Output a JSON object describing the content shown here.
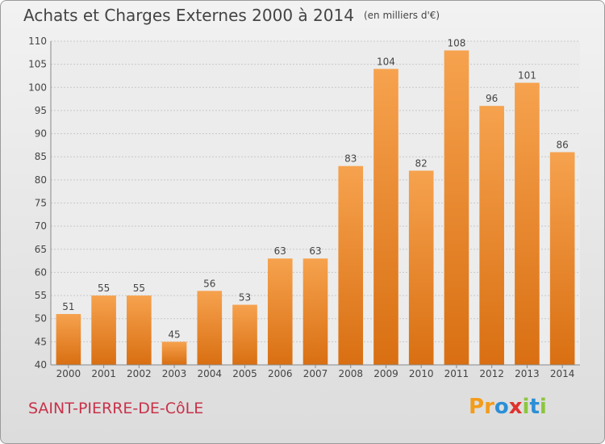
{
  "title": "Achats et Charges Externes 2000 à 2014",
  "unit_note": "(en milliers d'€)",
  "commune": "SAINT-PIERRE-DE-CôLE",
  "brand": {
    "letters": [
      "P",
      "r",
      "o",
      "x",
      "i",
      "t",
      "i"
    ],
    "colors": [
      "#f39c1a",
      "#f39c1a",
      "#2b8fd6",
      "#e0312e",
      "#8cc63f",
      "#2b8fd6",
      "#8cc63f"
    ]
  },
  "chart_data": {
    "type": "bar",
    "categories": [
      "2000",
      "2001",
      "2002",
      "2003",
      "2004",
      "2005",
      "2006",
      "2007",
      "2008",
      "2009",
      "2010",
      "2011",
      "2012",
      "2013",
      "2014"
    ],
    "values": [
      51,
      55,
      55,
      45,
      56,
      53,
      63,
      63,
      83,
      104,
      82,
      108,
      96,
      101,
      86
    ],
    "ylim": [
      40,
      110
    ],
    "yticks": [
      40,
      45,
      50,
      55,
      60,
      65,
      70,
      75,
      80,
      85,
      90,
      95,
      100,
      105,
      110
    ],
    "grid": true,
    "bar_color_top": "#f6a24e",
    "bar_color_bottom": "#d96f12"
  }
}
